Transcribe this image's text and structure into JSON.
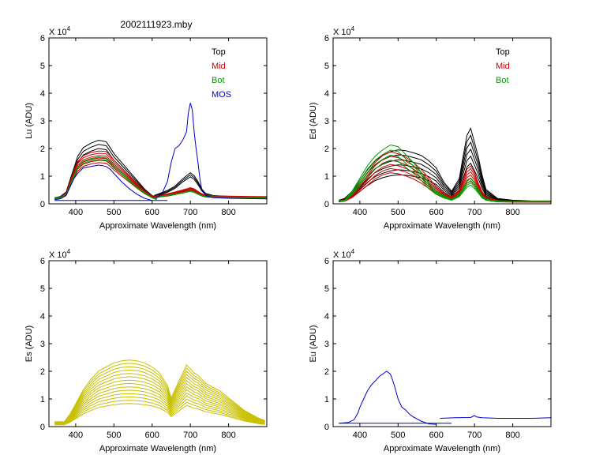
{
  "figure_title": "2002111923.mby",
  "chart_data": [
    {
      "id": "lu",
      "type": "line",
      "ylabel": "Lu (ADU)",
      "xlabel": "Approximate Wavelength (nm)",
      "xlim": [
        330,
        900
      ],
      "ylim": [
        0,
        6
      ],
      "xticks": [
        400,
        500,
        600,
        700,
        800
      ],
      "yticks": [
        0,
        1,
        2,
        3,
        4,
        5,
        6
      ],
      "multiplier": "X 10",
      "multiplier_exp": "4",
      "legend": [
        {
          "label": "Top",
          "color": "#000000"
        },
        {
          "label": "Mid",
          "color": "#cc0000"
        },
        {
          "label": "Bot",
          "color": "#009900"
        },
        {
          "label": "MOS",
          "color": "#0000cc"
        }
      ],
      "series": [
        {
          "name": "Top",
          "color": "#000000",
          "copies": 3,
          "spread": 0.07,
          "segments": [
            {
              "x": [
                345,
                360,
                375,
                385,
                395,
                405,
                420,
                440,
                460,
                480,
                490,
                500,
                520,
                540,
                560,
                580,
                600,
                612
              ],
              "y": [
                0.2,
                0.25,
                0.4,
                0.8,
                1.2,
                1.6,
                1.9,
                2.05,
                2.15,
                2.1,
                1.9,
                1.7,
                1.4,
                1.1,
                0.8,
                0.5,
                0.28,
                0.2
              ]
            },
            {
              "x": [
                605,
                620,
                640,
                660,
                680,
                695,
                700,
                710,
                720,
                730,
                740,
                760,
                800,
                850,
                900
              ],
              "y": [
                0.28,
                0.35,
                0.45,
                0.6,
                0.85,
                1.0,
                1.05,
                0.95,
                0.75,
                0.5,
                0.35,
                0.28,
                0.25,
                0.23,
                0.22
              ]
            }
          ]
        },
        {
          "name": "Mid",
          "color": "#cc0000",
          "copies": 6,
          "spread": 0.05,
          "segments": [
            {
              "x": [
                345,
                360,
                375,
                385,
                395,
                405,
                420,
                440,
                460,
                480,
                490,
                500,
                520,
                540,
                560,
                580,
                600,
                612
              ],
              "y": [
                0.2,
                0.22,
                0.35,
                0.7,
                1.05,
                1.35,
                1.55,
                1.65,
                1.7,
                1.68,
                1.55,
                1.4,
                1.15,
                0.9,
                0.65,
                0.42,
                0.25,
                0.18
              ]
            },
            {
              "x": [
                605,
                620,
                640,
                660,
                680,
                695,
                700,
                710,
                720,
                730,
                740,
                760,
                800,
                850,
                900
              ],
              "y": [
                0.25,
                0.28,
                0.32,
                0.38,
                0.45,
                0.5,
                0.52,
                0.48,
                0.4,
                0.32,
                0.28,
                0.26,
                0.25,
                0.24,
                0.23
              ]
            }
          ]
        },
        {
          "name": "Bot",
          "color": "#009900",
          "copies": 2,
          "spread": 0.05,
          "segments": [
            {
              "x": [
                345,
                360,
                375,
                385,
                395,
                405,
                420,
                440,
                460,
                480,
                490,
                500,
                520,
                540,
                560,
                580,
                600,
                612
              ],
              "y": [
                0.2,
                0.22,
                0.33,
                0.65,
                1.0,
                1.3,
                1.5,
                1.6,
                1.65,
                1.62,
                1.5,
                1.35,
                1.1,
                0.85,
                0.6,
                0.4,
                0.22,
                0.16
              ]
            },
            {
              "x": [
                605,
                620,
                640,
                660,
                680,
                695,
                700,
                710,
                720,
                730,
                740,
                760,
                800,
                850,
                900
              ],
              "y": [
                0.22,
                0.26,
                0.3,
                0.35,
                0.4,
                0.45,
                0.46,
                0.42,
                0.35,
                0.3,
                0.27,
                0.25,
                0.24,
                0.23,
                0.22
              ]
            }
          ]
        },
        {
          "name": "MOS",
          "color": "#0000cc",
          "copies": 1,
          "spread": 0,
          "segments": [
            {
              "x": [
                345,
                360,
                375,
                385,
                395,
                405,
                420,
                440,
                460,
                470,
                480,
                490,
                500,
                520,
                540,
                560,
                580,
                600
              ],
              "y": [
                0.15,
                0.18,
                0.3,
                0.6,
                0.9,
                1.1,
                1.3,
                1.35,
                1.4,
                1.38,
                1.35,
                1.25,
                1.1,
                0.8,
                0.55,
                0.35,
                0.2,
                0.12
              ]
            },
            {
              "x": [
                345,
                450,
                550,
                640
              ],
              "y": [
                0.12,
                0.12,
                0.12,
                0.12
              ]
            },
            {
              "x": [
                610,
                625,
                640,
                650,
                660,
                670,
                680,
                690,
                695,
                700,
                705,
                710,
                715,
                720,
                725,
                730,
                740,
                760,
                800,
                900
              ],
              "y": [
                0.2,
                0.35,
                0.8,
                1.5,
                2.0,
                2.1,
                2.3,
                2.6,
                3.3,
                3.65,
                3.4,
                2.6,
                2.0,
                1.5,
                0.9,
                0.5,
                0.3,
                0.22,
                0.2,
                0.18
              ]
            }
          ]
        }
      ]
    },
    {
      "id": "ed",
      "type": "line",
      "ylabel": "Ed (ADU)",
      "xlabel": "Approximate Wavelength (nm)",
      "xlim": [
        330,
        900
      ],
      "ylim": [
        0,
        6
      ],
      "xticks": [
        400,
        500,
        600,
        700,
        800
      ],
      "yticks": [
        0,
        1,
        2,
        3,
        4,
        5,
        6
      ],
      "multiplier": "X 10",
      "multiplier_exp": "4",
      "legend": [
        {
          "label": "Top",
          "color": "#000000"
        },
        {
          "label": "Mid",
          "color": "#cc0000"
        },
        {
          "label": "Bot",
          "color": "#009900"
        }
      ],
      "series": [
        {
          "name": "Top",
          "color": "#000000",
          "copies": 6,
          "spread": 0.12,
          "segments": [
            {
              "x": [
                345,
                360,
                380,
                400,
                420,
                440,
                460,
                480,
                500,
                520,
                540,
                560,
                580,
                600,
                620,
                640,
                660,
                670,
                680,
                690,
                700,
                710,
                720,
                730,
                760,
                800,
                850,
                900
              ],
              "y": [
                0.1,
                0.15,
                0.35,
                0.65,
                0.95,
                1.2,
                1.35,
                1.45,
                1.5,
                1.48,
                1.42,
                1.35,
                1.2,
                1.0,
                0.6,
                0.35,
                0.7,
                1.3,
                1.9,
                2.1,
                1.7,
                1.3,
                0.8,
                0.4,
                0.15,
                0.1,
                0.08,
                0.08
              ]
            }
          ]
        },
        {
          "name": "Mid",
          "color": "#cc0000",
          "copies": 6,
          "spread": 0.1,
          "segments": [
            {
              "x": [
                345,
                360,
                380,
                400,
                420,
                440,
                460,
                480,
                500,
                520,
                540,
                560,
                580,
                600,
                620,
                640,
                660,
                670,
                680,
                690,
                700,
                710,
                720,
                730,
                760,
                800,
                850,
                900
              ],
              "y": [
                0.1,
                0.12,
                0.3,
                0.6,
                0.9,
                1.2,
                1.4,
                1.5,
                1.45,
                1.35,
                1.2,
                1.0,
                0.75,
                0.5,
                0.3,
                0.2,
                0.4,
                0.7,
                1.0,
                1.1,
                0.9,
                0.6,
                0.35,
                0.2,
                0.1,
                0.08,
                0.08,
                0.08
              ]
            }
          ]
        },
        {
          "name": "Bot",
          "color": "#009900",
          "copies": 4,
          "spread": 0.1,
          "segments": [
            {
              "x": [
                345,
                360,
                380,
                400,
                420,
                440,
                460,
                480,
                500,
                520,
                540,
                560,
                580,
                600,
                620,
                640,
                660,
                670,
                680,
                690,
                700,
                710,
                720,
                730,
                760,
                800,
                850,
                900
              ],
              "y": [
                0.1,
                0.12,
                0.4,
                0.8,
                1.2,
                1.5,
                1.7,
                1.85,
                1.8,
                1.55,
                1.3,
                1.0,
                0.65,
                0.4,
                0.25,
                0.15,
                0.3,
                0.5,
                0.7,
                0.8,
                0.65,
                0.45,
                0.25,
                0.15,
                0.08,
                0.08,
                0.08,
                0.08
              ]
            }
          ]
        }
      ]
    },
    {
      "id": "es",
      "type": "line",
      "ylabel": "Es (ADU)",
      "xlabel": "Approximate Wavelength (nm)",
      "xlim": [
        330,
        900
      ],
      "ylim": [
        0,
        6
      ],
      "xticks": [
        400,
        500,
        600,
        700,
        800
      ],
      "yticks": [
        0,
        1,
        2,
        3,
        4,
        5,
        6
      ],
      "multiplier": "X 10",
      "multiplier_exp": "4",
      "legend": [],
      "series": [
        {
          "name": "Es",
          "color": "#c8c000",
          "copies": 14,
          "spread": 0.075,
          "segments": [
            {
              "x": [
                345,
                370,
                385,
                400,
                420,
                440,
                460,
                480,
                500,
                520,
                540,
                560,
                580,
                600,
                620,
                640,
                650,
                660,
                670,
                680,
                690,
                700,
                710,
                720,
                730,
                740,
                760,
                780,
                800,
                820,
                840,
                860,
                880,
                895
              ],
              "y": [
                0.12,
                0.12,
                0.3,
                0.55,
                0.9,
                1.15,
                1.35,
                1.45,
                1.55,
                1.6,
                1.62,
                1.6,
                1.55,
                1.45,
                1.3,
                1.0,
                0.7,
                0.9,
                1.1,
                1.3,
                1.5,
                1.4,
                1.3,
                1.25,
                1.15,
                1.05,
                0.95,
                0.85,
                0.7,
                0.55,
                0.4,
                0.3,
                0.2,
                0.15
              ]
            }
          ]
        }
      ]
    },
    {
      "id": "eu",
      "type": "line",
      "ylabel": "Eu (ADU)",
      "xlabel": "Approximate Wavelength (nm)",
      "xlim": [
        330,
        900
      ],
      "ylim": [
        0,
        6
      ],
      "xticks": [
        400,
        500,
        600,
        700,
        800
      ],
      "yticks": [
        0,
        1,
        2,
        3,
        4,
        5,
        6
      ],
      "multiplier": "X 10",
      "multiplier_exp": "4",
      "legend": [],
      "series": [
        {
          "name": "Eu",
          "color": "#0000cc",
          "copies": 1,
          "spread": 0,
          "segments": [
            {
              "x": [
                345,
                370,
                385,
                395,
                400,
                410,
                420,
                430,
                440,
                450,
                460,
                470,
                480,
                485,
                490,
                500,
                510,
                520,
                530,
                540,
                560,
                580,
                600
              ],
              "y": [
                0.12,
                0.15,
                0.25,
                0.5,
                0.7,
                1.0,
                1.3,
                1.5,
                1.65,
                1.8,
                1.9,
                2.0,
                1.9,
                1.7,
                1.5,
                1.0,
                0.7,
                0.6,
                0.45,
                0.35,
                0.2,
                0.1,
                0.08
              ]
            },
            {
              "x": [
                345,
                450,
                550,
                640
              ],
              "y": [
                0.12,
                0.12,
                0.12,
                0.12
              ]
            },
            {
              "x": [
                610,
                650,
                690,
                700,
                705,
                720,
                760,
                800,
                850,
                900
              ],
              "y": [
                0.3,
                0.32,
                0.33,
                0.4,
                0.35,
                0.32,
                0.3,
                0.3,
                0.3,
                0.32
              ]
            }
          ]
        }
      ]
    }
  ]
}
